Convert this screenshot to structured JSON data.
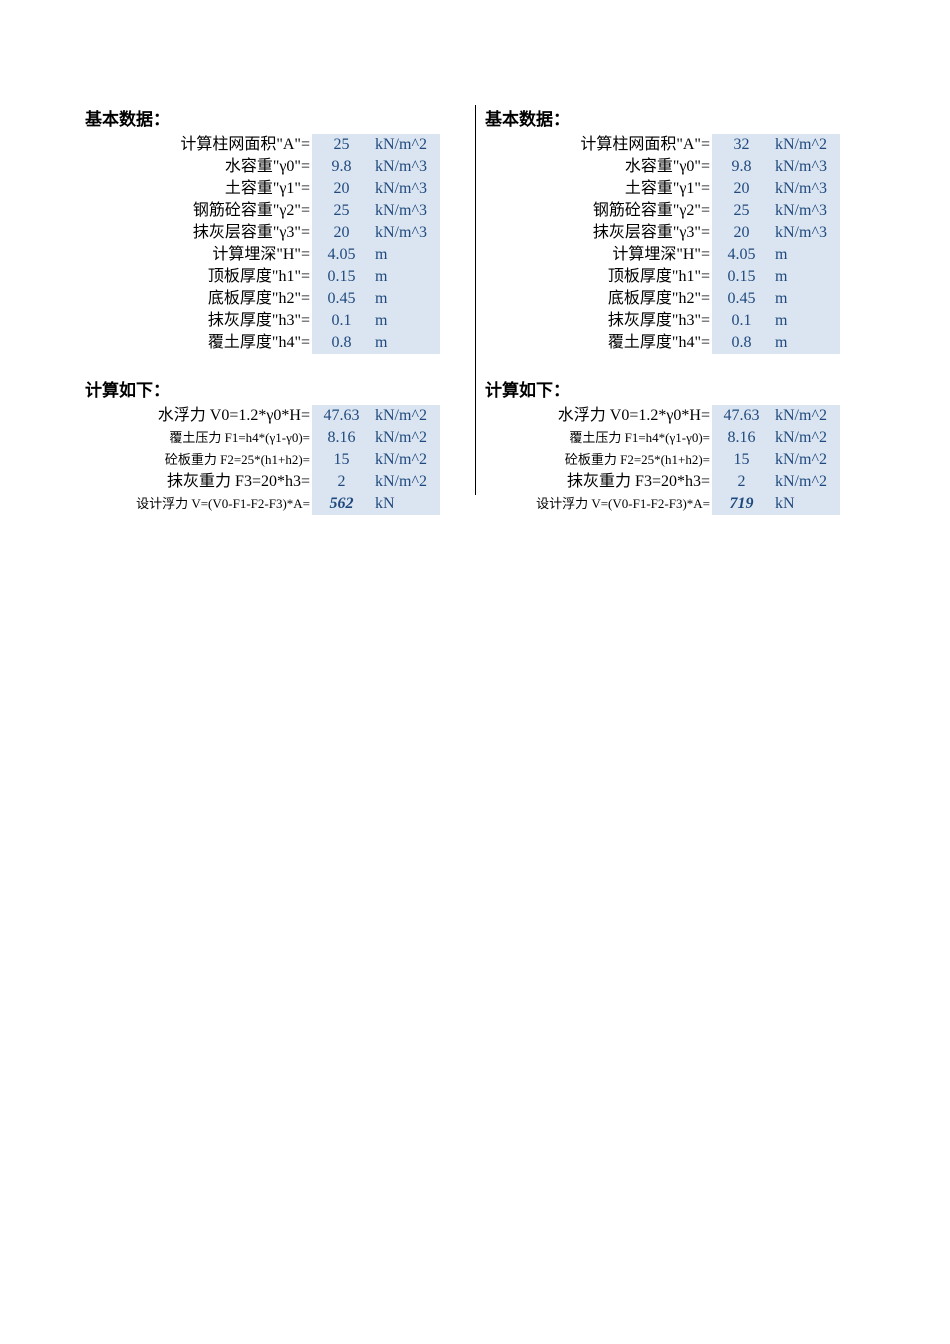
{
  "colors": {
    "value_bg": "#dbe5f1",
    "value_text": "#1f497d",
    "text": "#000000",
    "background": "#ffffff"
  },
  "typography": {
    "base_fontsize": 16,
    "small_fontsize": 13,
    "title_fontsize": 17,
    "font_family": "SimSun"
  },
  "left": {
    "basic_title": "基本数据：",
    "basic": [
      {
        "label": "计算柱网面积\"A\"=",
        "value": "25",
        "unit": "kN/m^2"
      },
      {
        "label": "水容重\"γ0\"=",
        "value": "9.8",
        "unit": "kN/m^3"
      },
      {
        "label": "土容重\"γ1\"=",
        "value": "20",
        "unit": "kN/m^3"
      },
      {
        "label": "钢筋砼容重\"γ2\"=",
        "value": "25",
        "unit": "kN/m^3"
      },
      {
        "label": "抹灰层容重\"γ3\"=",
        "value": "20",
        "unit": "kN/m^3"
      },
      {
        "label": "计算埋深\"H\"=",
        "value": "4.05",
        "unit": "m"
      },
      {
        "label": "顶板厚度\"h1\"=",
        "value": "0.15",
        "unit": "m"
      },
      {
        "label": "底板厚度\"h2\"=",
        "value": "0.45",
        "unit": "m"
      },
      {
        "label": "抹灰厚度\"h3\"=",
        "value": "0.1",
        "unit": "m"
      },
      {
        "label": "覆土厚度\"h4\"=",
        "value": "0.8",
        "unit": "m"
      }
    ],
    "calc_title": "计算如下：",
    "calc": [
      {
        "label": "水浮力 V0=1.2*γ0*H=",
        "value": "47.63",
        "unit": "kN/m^2",
        "small": false
      },
      {
        "label": "覆土压力 F1=h4*(γ1-γ0)=",
        "value": "8.16",
        "unit": "kN/m^2",
        "small": true
      },
      {
        "label": "砼板重力 F2=25*(h1+h2)=",
        "value": "15",
        "unit": "kN/m^2",
        "small": true
      },
      {
        "label": "抹灰重力 F3=20*h3=",
        "value": "2",
        "unit": "kN/m^2",
        "small": false
      },
      {
        "label": "设计浮力 V=(V0-F1-F2-F3)*A=",
        "value": "562",
        "unit": "kN",
        "small": true,
        "result": true
      }
    ]
  },
  "right": {
    "basic_title": "基本数据：",
    "basic": [
      {
        "label": "计算柱网面积\"A\"=",
        "value": "32",
        "unit": "kN/m^2"
      },
      {
        "label": "水容重\"γ0\"=",
        "value": "9.8",
        "unit": "kN/m^3"
      },
      {
        "label": "土容重\"γ1\"=",
        "value": "20",
        "unit": "kN/m^3"
      },
      {
        "label": "钢筋砼容重\"γ2\"=",
        "value": "25",
        "unit": "kN/m^3"
      },
      {
        "label": "抹灰层容重\"γ3\"=",
        "value": "20",
        "unit": "kN/m^3"
      },
      {
        "label": "计算埋深\"H\"=",
        "value": "4.05",
        "unit": "m"
      },
      {
        "label": "顶板厚度\"h1\"=",
        "value": "0.15",
        "unit": "m"
      },
      {
        "label": "底板厚度\"h2\"=",
        "value": "0.45",
        "unit": "m"
      },
      {
        "label": "抹灰厚度\"h3\"=",
        "value": "0.1",
        "unit": "m"
      },
      {
        "label": "覆土厚度\"h4\"=",
        "value": "0.8",
        "unit": "m"
      }
    ],
    "calc_title": "计算如下：",
    "calc": [
      {
        "label": "水浮力 V0=1.2*γ0*H=",
        "value": "47.63",
        "unit": "kN/m^2",
        "small": false
      },
      {
        "label": "覆土压力 F1=h4*(γ1-γ0)=",
        "value": "8.16",
        "unit": "kN/m^2",
        "small": true
      },
      {
        "label": "砼板重力 F2=25*(h1+h2)=",
        "value": "15",
        "unit": "kN/m^2",
        "small": true
      },
      {
        "label": "抹灰重力 F3=20*h3=",
        "value": "2",
        "unit": "kN/m^2",
        "small": false
      },
      {
        "label": "设计浮力 V=(V0-F1-F2-F3)*A=",
        "value": "719",
        "unit": "kN",
        "small": true,
        "result": true
      }
    ]
  }
}
